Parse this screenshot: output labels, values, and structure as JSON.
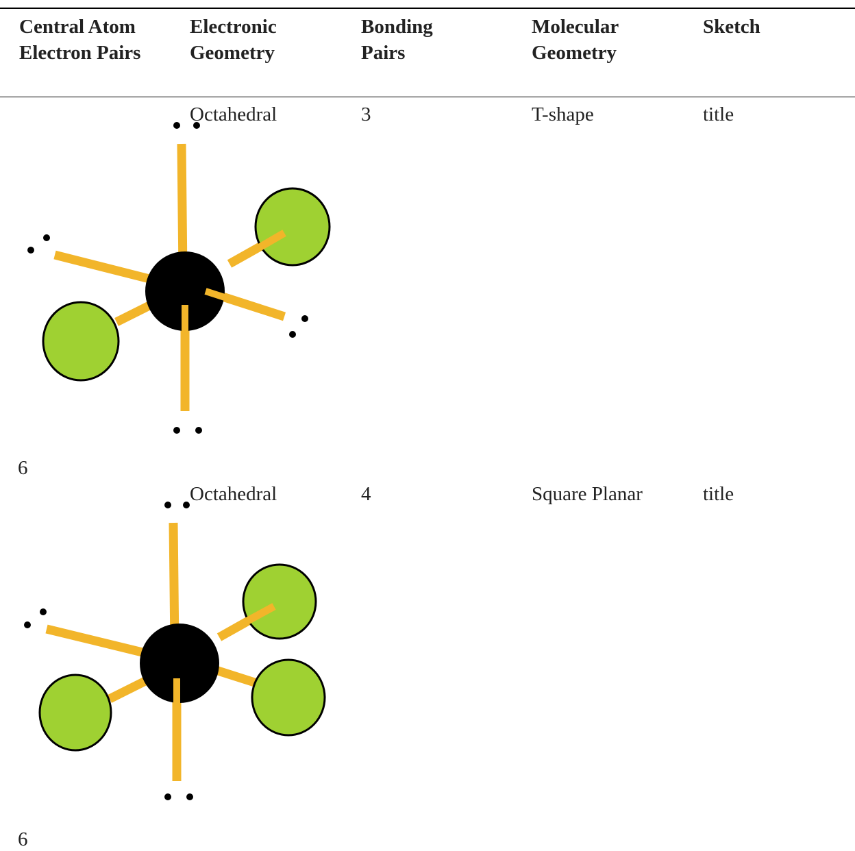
{
  "table": {
    "header": [
      "Central Atom Electron Pairs",
      "Electronic Geometry",
      "Bonding Pairs",
      "Molecular Geometry",
      "Sketch"
    ],
    "rows": [
      [
        "6",
        "Octahedral",
        "3",
        "T-shape",
        "title"
      ],
      [
        "6",
        "Octahedral",
        "4",
        "Square Planar",
        "title"
      ]
    ]
  }
}
